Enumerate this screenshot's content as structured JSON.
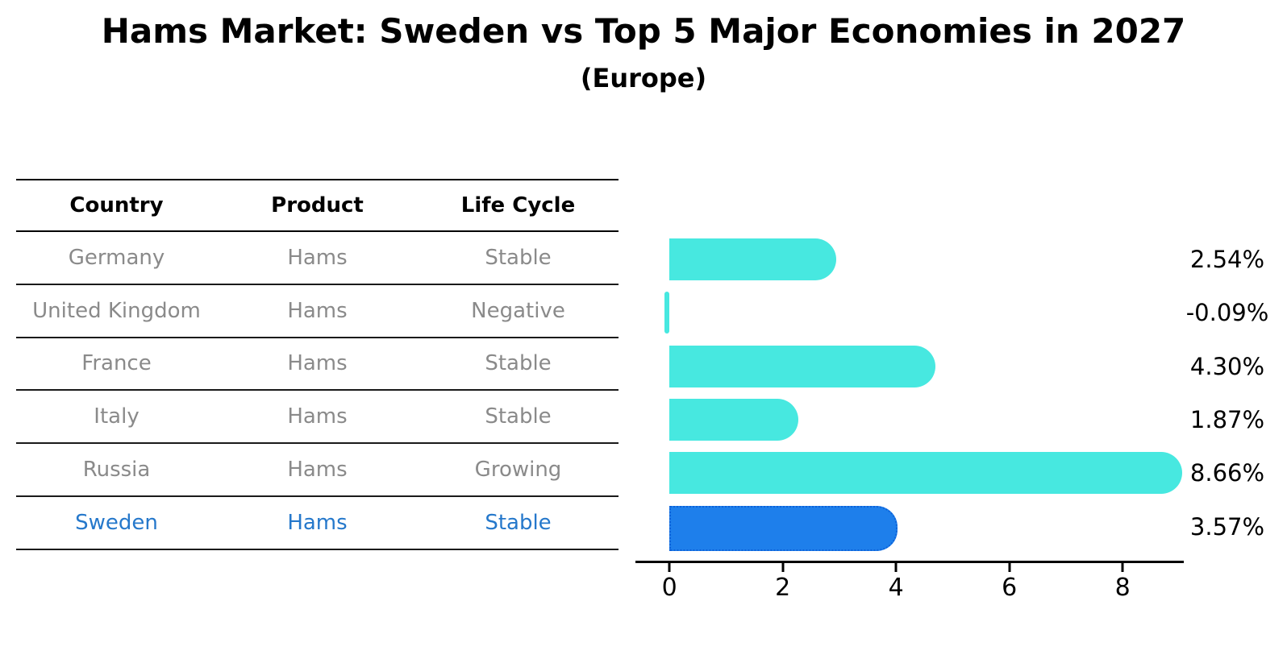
{
  "title": "Hams Market: Sweden vs Top 5 Major Economies in 2027",
  "subtitle": "(Europe)",
  "table": {
    "headers": [
      "Country",
      "Product",
      "Life Cycle"
    ],
    "rows": [
      {
        "country": "Germany",
        "product": "Hams",
        "life_cycle": "Stable",
        "highlight": false
      },
      {
        "country": "United Kingdom",
        "product": "Hams",
        "life_cycle": "Negative",
        "highlight": false
      },
      {
        "country": "France",
        "product": "Hams",
        "life_cycle": "Stable",
        "highlight": false
      },
      {
        "country": "Italy",
        "product": "Hams",
        "life_cycle": "Stable",
        "highlight": false
      },
      {
        "country": "Russia",
        "product": "Hams",
        "life_cycle": "Growing",
        "highlight": false
      },
      {
        "country": "Sweden",
        "product": "Hams",
        "life_cycle": "Stable",
        "highlight": true
      }
    ]
  },
  "chart_data": {
    "type": "bar",
    "orientation": "horizontal",
    "title": "Hams Market: Sweden vs Top 5 Major Economies in 2027 (Europe)",
    "categories": [
      "Germany",
      "United Kingdom",
      "France",
      "Italy",
      "Russia",
      "Sweden"
    ],
    "values": [
      2.54,
      -0.09,
      4.3,
      1.87,
      8.66,
      3.57
    ],
    "value_labels": [
      "2.54%",
      "-0.09%",
      "4.30%",
      "1.87%",
      "8.66%",
      "3.57%"
    ],
    "unit": "%",
    "xticks": [
      "0",
      "2",
      "4",
      "6",
      "8"
    ],
    "xtick_values": [
      0,
      2,
      4,
      6,
      8
    ],
    "xlim": [
      -0.6,
      9.08
    ],
    "grid": false,
    "legend": false,
    "highlight_index": 5,
    "bar_color": "#47E8E0",
    "highlight_color": "#1E7FEB",
    "highlight_border_color": "#0D62D9",
    "highlight_text_color": "#2578CB",
    "row_text_color": "#8a8a8a"
  }
}
